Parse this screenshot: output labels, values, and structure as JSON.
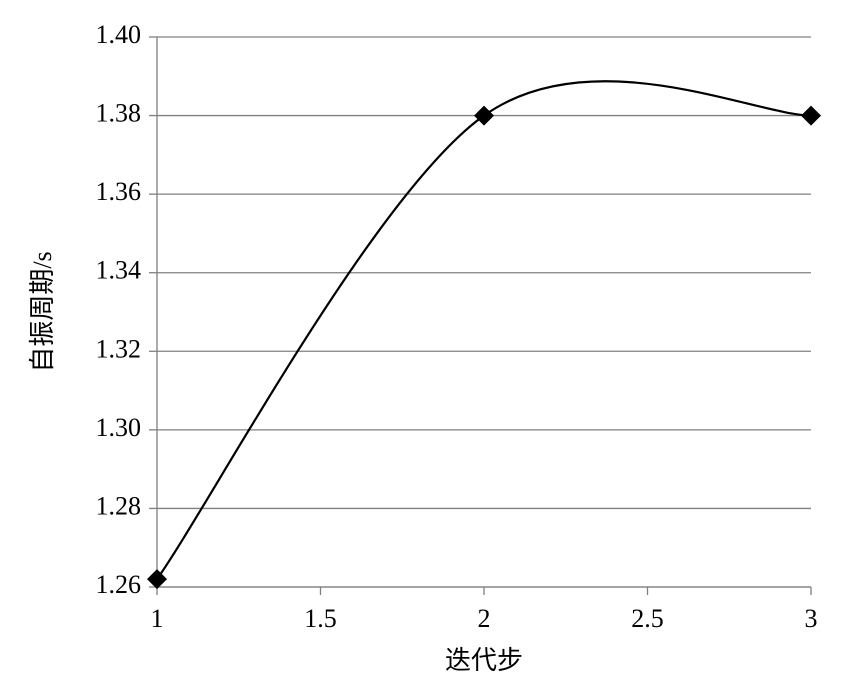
{
  "chart_data": {
    "type": "line",
    "smooth": true,
    "x_label": "迭代步",
    "y_label": "自振周期/s",
    "x": [
      1,
      2,
      3
    ],
    "values": [
      1.262,
      1.38,
      1.38
    ],
    "color": "#000000",
    "xlim": [
      1,
      3
    ],
    "xticks": [
      1,
      1.5,
      2,
      2.5,
      3
    ],
    "ylim": [
      1.26,
      1.4
    ],
    "yticks": [
      1.26,
      1.28,
      {
        "value": 1.3,
        "label": "1.30"
      },
      1.32,
      1.34,
      1.36,
      1.38,
      {
        "value": 1.4,
        "label": "1.40"
      }
    ],
    "grid": true,
    "marker": "diamond"
  }
}
